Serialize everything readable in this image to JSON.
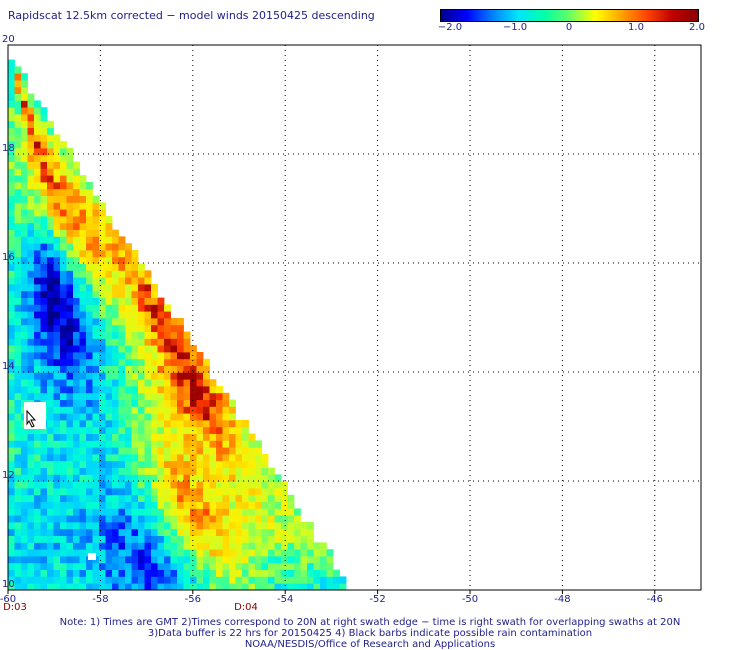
{
  "title": "Rapidscat 12.5km corrected − model winds 20150425 descending",
  "colorbar": {
    "labels": [
      "−2.0",
      "−1.0",
      "0",
      "1.0",
      "2.0"
    ],
    "values": [
      -2.0,
      -1.0,
      0,
      1.0,
      2.0
    ],
    "colors": [
      "#00008b",
      "#0000ff",
      "#0080ff",
      "#00e5ff",
      "#00ffaa",
      "#66ff66",
      "#ffff00",
      "#ffa500",
      "#ff4500",
      "#c00000",
      "#8b0000"
    ]
  },
  "map": {
    "lon_range": [
      -60,
      -45
    ],
    "lat_range": [
      10,
      20
    ],
    "lon_ticks": [
      {
        "value": -60,
        "label": "-60"
      },
      {
        "value": -58,
        "label": "-58"
      },
      {
        "value": -56,
        "label": "-56"
      },
      {
        "value": -54,
        "label": "-54"
      },
      {
        "value": -52,
        "label": "-52"
      },
      {
        "value": -50,
        "label": "-50"
      },
      {
        "value": -48,
        "label": "-48"
      },
      {
        "value": -46,
        "label": "-46"
      }
    ],
    "lat_ticks": [
      {
        "value": 10,
        "label": "10"
      },
      {
        "value": 12,
        "label": "12"
      },
      {
        "value": 14,
        "label": "14"
      },
      {
        "value": 16,
        "label": "16"
      },
      {
        "value": 18,
        "label": "18"
      },
      {
        "value": 20,
        "label": "20"
      }
    ],
    "time_labels": [
      {
        "lon": -60,
        "label": "D:03"
      },
      {
        "lon": -55,
        "label": "D:04"
      }
    ],
    "gridlines": "dotted",
    "swath_edge": [
      [
        -60,
        19.8
      ],
      [
        -52.6,
        10
      ]
    ]
  },
  "notes": [
    "Note: 1) Times are GMT 2)Times correspond to 20N at right swath edge − time is right swath for overlapping swaths at 20N",
    "3)Data buffer is 22 hrs for 20150425 4) Black barbs indicate possible rain contamination",
    "NOAA/NESDIS/Office of Research and Applications"
  ]
}
